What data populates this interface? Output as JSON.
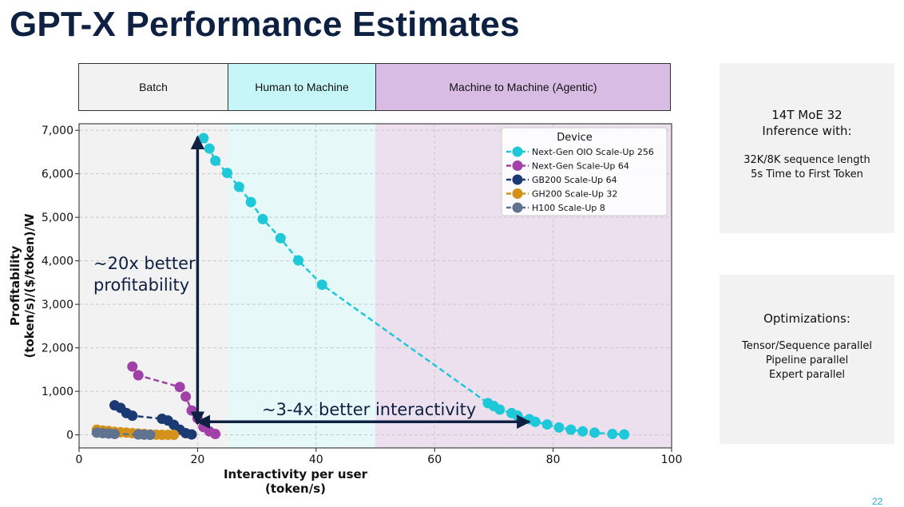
{
  "slide": {
    "title": "GPT-X Performance Estimates",
    "page_number": "22"
  },
  "phases": [
    {
      "label": "Batch",
      "color": "#f2f2f2"
    },
    {
      "label": "Human to Machine",
      "color": "#c7f6f8"
    },
    {
      "label": "Machine to Machine (Agentic)",
      "color": "#d9bce3"
    }
  ],
  "panels": {
    "model": {
      "heading_lines": [
        "14T MoE 32",
        "Inference with:"
      ],
      "detail_lines": [
        "32K/8K sequence length",
        "5s Time to First Token"
      ]
    },
    "optimizations": {
      "heading": "Optimizations:",
      "items": [
        "Tensor/Sequence parallel",
        "Pipeline parallel",
        "Expert parallel"
      ]
    }
  },
  "chart_data": {
    "type": "line",
    "xlabel": "Interactivity per user\n(token/s)",
    "ylabel": "Profitability\n(token/s)/($/token)/W",
    "xlim": [
      0,
      100
    ],
    "ylim": [
      -300,
      7150
    ],
    "xticks": [
      0,
      20,
      40,
      60,
      80,
      100
    ],
    "yticks": [
      0,
      1000,
      2000,
      3000,
      4000,
      5000,
      6000,
      7000
    ],
    "ytick_labels": [
      "0",
      "1,000",
      "2,000",
      "3,000",
      "4,000",
      "5,000",
      "6,000",
      "7,000"
    ],
    "grid": true,
    "legend": {
      "title": "Device",
      "position": "top-right"
    },
    "regions": [
      {
        "from": 0,
        "to": 25,
        "color": "#f2f2f2"
      },
      {
        "from": 25,
        "to": 50,
        "color": "#e6f8f8"
      },
      {
        "from": 50,
        "to": 100,
        "color": "#ece0ee"
      }
    ],
    "series": [
      {
        "name": "Next-Gen OIO Scale-Up 256",
        "color": "#1ec8d8",
        "points": [
          [
            21,
            6820
          ],
          [
            22,
            6580
          ],
          [
            23,
            6300
          ],
          [
            25,
            6020
          ],
          [
            27,
            5700
          ],
          [
            29,
            5350
          ],
          [
            31,
            4960
          ],
          [
            34,
            4520
          ],
          [
            37,
            4010
          ],
          [
            41,
            3450
          ],
          [
            69,
            730
          ],
          [
            70,
            660
          ],
          [
            71,
            580
          ],
          [
            73,
            500
          ],
          [
            74,
            440
          ],
          [
            76,
            360
          ],
          [
            77,
            300
          ],
          [
            79,
            240
          ],
          [
            81,
            170
          ],
          [
            83,
            120
          ],
          [
            85,
            80
          ],
          [
            87,
            50
          ],
          [
            90,
            20
          ],
          [
            92,
            10
          ]
        ]
      },
      {
        "name": "Next-Gen Scale-Up 64",
        "color": "#a040a8",
        "points": [
          [
            9,
            1570
          ],
          [
            10,
            1370
          ],
          [
            17,
            1100
          ],
          [
            18,
            880
          ],
          [
            19,
            560
          ],
          [
            20,
            380
          ],
          [
            21,
            180
          ],
          [
            22,
            80
          ],
          [
            23,
            20
          ]
        ]
      },
      {
        "name": "GB200 Scale-Up 64",
        "color": "#1b3a73",
        "points": [
          [
            6,
            680
          ],
          [
            7,
            620
          ],
          [
            8,
            500
          ],
          [
            9,
            440
          ],
          [
            14,
            370
          ],
          [
            15,
            330
          ],
          [
            16,
            230
          ],
          [
            17,
            120
          ],
          [
            18,
            40
          ],
          [
            19,
            10
          ]
        ]
      },
      {
        "name": "GH200 Scale-Up 32",
        "color": "#d4921a",
        "points": [
          [
            3,
            120
          ],
          [
            4,
            100
          ],
          [
            5,
            90
          ],
          [
            6,
            70
          ],
          [
            7,
            60
          ],
          [
            8,
            50
          ],
          [
            9,
            40
          ],
          [
            10,
            30
          ],
          [
            11,
            20
          ],
          [
            12,
            10
          ],
          [
            13,
            5
          ],
          [
            14,
            0
          ],
          [
            15,
            0
          ],
          [
            16,
            0
          ]
        ]
      },
      {
        "name": "H100 Scale-Up 8",
        "color": "#5f7391",
        "points": [
          [
            3,
            50
          ],
          [
            4,
            40
          ],
          [
            5,
            30
          ],
          [
            6,
            20
          ],
          [
            10,
            10
          ],
          [
            11,
            5
          ],
          [
            12,
            0
          ]
        ]
      }
    ],
    "annotations": [
      {
        "text_lines": [
          "~20x better",
          "profitability"
        ],
        "arrow": {
          "x1": 20,
          "y1": 250,
          "x2": 20,
          "y2": 6850,
          "bidirectional": true
        }
      },
      {
        "text_lines": [
          "~3-4x better interactivity"
        ],
        "arrow": {
          "x1": 20,
          "y1": 300,
          "x2": 76,
          "y2": 300,
          "bidirectional": true
        }
      }
    ]
  }
}
